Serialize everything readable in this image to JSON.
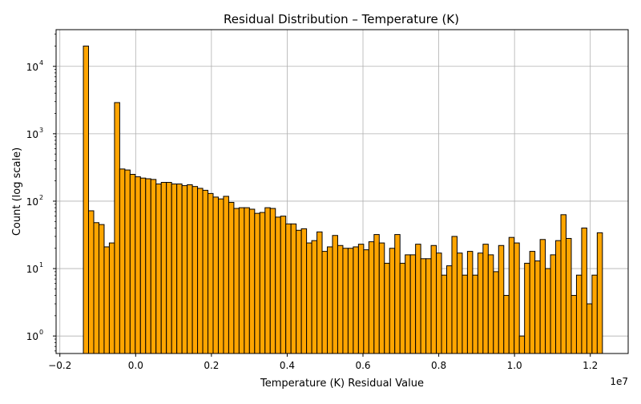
{
  "chart_data": {
    "type": "bar",
    "title": "Residual Distribution – Temperature (K)",
    "xlabel": "Temperature (K) Residual Value",
    "ylabel": "Count (log scale)",
    "x_offset_label": "1e7",
    "x_scale": 10000000,
    "y_scale": "log",
    "grid": true,
    "bar_color": "#FFA500",
    "edge_color": "#000000",
    "xlim": [
      -0.21,
      1.3
    ],
    "ylim": [
      0.55,
      35000
    ],
    "x_ticks": [
      {
        "value": -0.2,
        "label": "−0.2"
      },
      {
        "value": 0.0,
        "label": "0.0"
      },
      {
        "value": 0.2,
        "label": "0.2"
      },
      {
        "value": 0.4,
        "label": "0.4"
      },
      {
        "value": 0.6,
        "label": "0.6"
      },
      {
        "value": 0.8,
        "label": "0.8"
      },
      {
        "value": 1.0,
        "label": "1.0"
      },
      {
        "value": 1.2,
        "label": "1.2"
      }
    ],
    "y_ticks": [
      {
        "value": 1,
        "base": "10",
        "exp": "0"
      },
      {
        "value": 10,
        "base": "10",
        "exp": "1"
      },
      {
        "value": 100,
        "base": "10",
        "exp": "2"
      },
      {
        "value": 1000,
        "base": "10",
        "exp": "3"
      },
      {
        "value": 10000,
        "base": "10",
        "exp": "4"
      }
    ],
    "bins": {
      "start": -0.138,
      "end": 1.232,
      "width": 0.0137
    },
    "values": [
      20000,
      72,
      48,
      45,
      21,
      24,
      2900,
      300,
      290,
      250,
      230,
      220,
      215,
      210,
      180,
      190,
      190,
      180,
      180,
      170,
      175,
      165,
      155,
      145,
      130,
      115,
      108,
      118,
      96,
      78,
      80,
      80,
      76,
      66,
      68,
      80,
      78,
      58,
      60,
      46,
      46,
      37,
      39,
      24,
      26,
      35,
      18,
      21,
      31,
      22,
      20,
      20,
      21,
      23,
      19,
      25,
      32,
      24,
      12,
      20,
      32,
      12,
      16,
      16,
      23,
      14,
      14,
      22,
      17,
      8,
      11,
      30,
      17,
      8,
      18,
      8,
      17,
      23,
      16,
      9,
      22,
      4,
      29,
      24,
      1,
      12,
      18,
      13,
      27,
      10,
      16,
      26,
      63,
      28,
      4,
      8,
      40,
      3,
      8,
      34
    ]
  }
}
